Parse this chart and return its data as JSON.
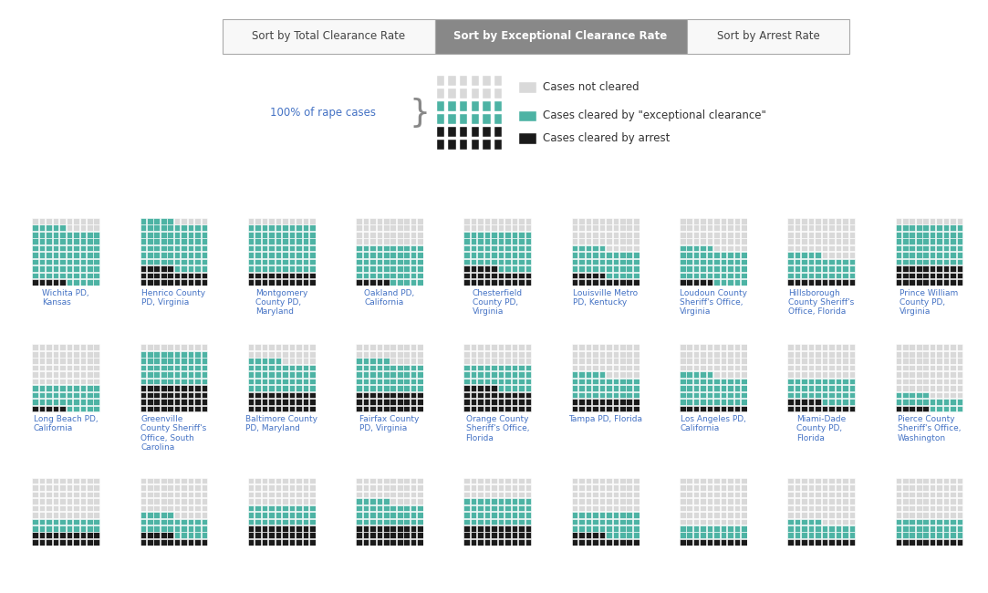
{
  "color_not_cleared": "#d9d9d9",
  "color_exceptional": "#4db3a4",
  "color_arrest": "#1a1a1a",
  "color_bg": "#ffffff",
  "button_active_color": "#888888",
  "button_inactive_color": "#f8f8f8",
  "buttons": [
    "Sort by Total Clearance Rate",
    "Sort by Exceptional Clearance Rate",
    "Sort by Arrest Rate"
  ],
  "active_button": 1,
  "legend_label1": "Cases not cleared",
  "legend_label2": "Cases cleared by \"exceptional clearance\"",
  "legend_label3": "Cases cleared by arrest",
  "legend_text": "100% of rape cases",
  "rows": 10,
  "cols": 10,
  "row1": [
    {
      "name": "Wichita PD,\nKansas",
      "exceptional": 80,
      "arrest": 5
    },
    {
      "name": "Henrico County\nPD, Virginia",
      "exceptional": 70,
      "arrest": 25
    },
    {
      "name": "Montgomery\nCounty PD,\nMaryland",
      "exceptional": 70,
      "arrest": 20
    },
    {
      "name": "Oakland PD,\nCalifornia",
      "exceptional": 55,
      "arrest": 5
    },
    {
      "name": "Chesterfield\nCounty PD,\nVirginia",
      "exceptional": 55,
      "arrest": 25
    },
    {
      "name": "Louisville Metro\nPD, Kentucky",
      "exceptional": 40,
      "arrest": 15
    },
    {
      "name": "Loudoun County\nSheriff's Office,\nVirginia",
      "exceptional": 50,
      "arrest": 5
    },
    {
      "name": "Hillsborough\nCounty Sheriff's\nOffice, Florida",
      "exceptional": 35,
      "arrest": 10
    },
    {
      "name": "Prince William\nCounty PD,\nVirginia",
      "exceptional": 60,
      "arrest": 30
    }
  ],
  "row2": [
    {
      "name": "Long Beach PD,\nCalifornia",
      "exceptional": 35,
      "arrest": 5
    },
    {
      "name": "Greenville\nCounty Sheriff's\nOffice, South\nCarolina",
      "exceptional": 50,
      "arrest": 40
    },
    {
      "name": "Baltimore County\nPD, Maryland",
      "exceptional": 45,
      "arrest": 30
    },
    {
      "name": "Fairfax County\nPD, Virginia",
      "exceptional": 45,
      "arrest": 30
    },
    {
      "name": "Orange County\nSheriff's Office,\nFlorida",
      "exceptional": 35,
      "arrest": 35
    },
    {
      "name": "Tampa PD, Florida",
      "exceptional": 35,
      "arrest": 20
    },
    {
      "name": "Los Angeles PD,\nCalifornia",
      "exceptional": 45,
      "arrest": 10
    },
    {
      "name": "Miami-Dade\nCounty PD,\nFlorida",
      "exceptional": 35,
      "arrest": 15
    },
    {
      "name": "Pierce County\nSheriff's Office,\nWashington",
      "exceptional": 20,
      "arrest": 5
    }
  ],
  "row3": [
    {
      "name": "",
      "exceptional": 20,
      "arrest": 20
    },
    {
      "name": "",
      "exceptional": 30,
      "arrest": 15
    },
    {
      "name": "",
      "exceptional": 30,
      "arrest": 30
    },
    {
      "name": "",
      "exceptional": 35,
      "arrest": 30
    },
    {
      "name": "",
      "exceptional": 40,
      "arrest": 30
    },
    {
      "name": "",
      "exceptional": 35,
      "arrest": 15
    },
    {
      "name": "",
      "exceptional": 20,
      "arrest": 10
    },
    {
      "name": "",
      "exceptional": 25,
      "arrest": 10
    },
    {
      "name": "",
      "exceptional": 30,
      "arrest": 10
    }
  ]
}
